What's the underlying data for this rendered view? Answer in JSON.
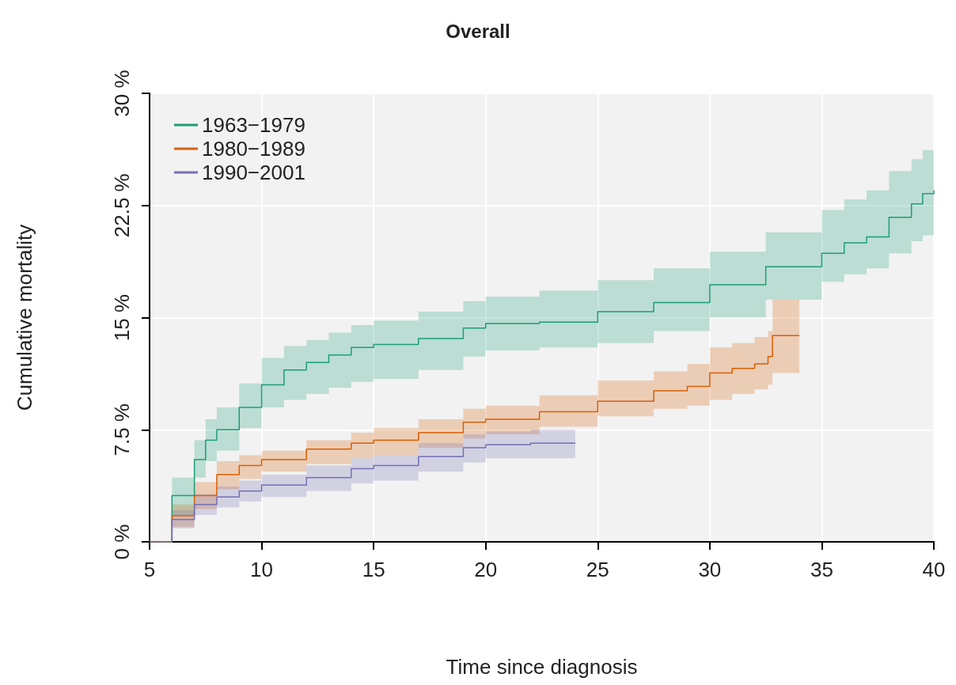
{
  "chart_data": {
    "type": "step",
    "title": "Overall",
    "xlabel": "Time since diagnosis",
    "ylabel": "Cumulative mortality",
    "xlim": [
      5,
      40
    ],
    "xticks": [
      5,
      10,
      15,
      20,
      25,
      30,
      35,
      40
    ],
    "ylim": [
      0,
      30
    ],
    "yticks": [
      {
        "value": 0,
        "label": "0 %"
      },
      {
        "value": 7.5,
        "label": "7.5 %"
      },
      {
        "value": 15,
        "label": "15 %"
      },
      {
        "value": 22.5,
        "label": "22.5 %"
      },
      {
        "value": 30,
        "label": "30 %"
      }
    ],
    "grid": true,
    "legend": "top left",
    "series": [
      {
        "name": "1963−1979",
        "color": "#1b9e77",
        "x": [
          5,
          6,
          7,
          7.5,
          8,
          9,
          10,
          11,
          12,
          13,
          14,
          15,
          17,
          19,
          20,
          22.4,
          25,
          27.5,
          30,
          32.5,
          35,
          36,
          37,
          38,
          39,
          39.5,
          40
        ],
        "values": [
          0,
          3.1,
          5.5,
          6.8,
          7.5,
          9.0,
          10.5,
          11.5,
          12.0,
          12.5,
          13.0,
          13.2,
          13.6,
          14.3,
          14.6,
          14.7,
          15.4,
          16.0,
          17.2,
          18.4,
          19.3,
          20.0,
          20.4,
          21.7,
          22.6,
          23.3,
          23.5
        ],
        "lower": [
          0,
          1.8,
          4.3,
          5.4,
          6.1,
          7.6,
          9.0,
          9.5,
          9.9,
          10.3,
          10.7,
          10.9,
          11.5,
          12.4,
          12.8,
          13.0,
          13.3,
          14.1,
          15.0,
          16.2,
          17.4,
          17.9,
          18.3,
          19.3,
          20.1,
          20.5,
          20.6
        ],
        "upper": [
          0,
          4.3,
          6.8,
          8.2,
          9.0,
          10.6,
          12.3,
          13.1,
          13.5,
          14.0,
          14.5,
          14.8,
          15.4,
          16.1,
          16.4,
          16.8,
          17.5,
          18.3,
          19.4,
          20.7,
          22.2,
          22.9,
          23.5,
          24.8,
          25.6,
          26.2,
          26.3
        ]
      },
      {
        "name": "1980−1989",
        "color": "#d95f02",
        "x": [
          5,
          6,
          7,
          8,
          9,
          10,
          12,
          14,
          15,
          17,
          19,
          20,
          22.4,
          25,
          27.5,
          29,
          30,
          31,
          32,
          32.6,
          32.8,
          34
        ],
        "values": [
          0,
          1.75,
          3.1,
          4.5,
          5.1,
          5.5,
          6.2,
          6.6,
          6.8,
          7.3,
          8.0,
          8.2,
          8.7,
          9.4,
          10.1,
          10.4,
          11.3,
          11.6,
          11.9,
          12.4,
          13.8,
          13.8
        ],
        "lower": [
          0,
          1.0,
          2.2,
          3.5,
          4.2,
          4.7,
          5.2,
          5.6,
          5.8,
          6.3,
          6.9,
          7.2,
          7.7,
          8.4,
          8.9,
          9.1,
          9.5,
          9.9,
          10.2,
          10.5,
          11.3,
          11.3
        ],
        "upper": [
          0,
          2.5,
          4.0,
          5.4,
          5.8,
          6.1,
          6.8,
          7.3,
          7.6,
          8.2,
          8.9,
          9.1,
          9.8,
          10.8,
          11.4,
          11.9,
          13.0,
          13.3,
          13.7,
          14.1,
          16.2,
          16.2
        ]
      },
      {
        "name": "1990−2001",
        "color": "#7570b3",
        "x": [
          5,
          6,
          7,
          8,
          9,
          10,
          12,
          14,
          15,
          17,
          19,
          20,
          22,
          24
        ],
        "values": [
          0,
          1.5,
          2.5,
          3.0,
          3.4,
          3.8,
          4.3,
          4.9,
          5.1,
          5.7,
          6.3,
          6.5,
          6.6,
          6.6
        ],
        "lower": [
          0,
          0.9,
          1.8,
          2.3,
          2.7,
          3.0,
          3.4,
          3.9,
          4.1,
          4.7,
          5.3,
          5.6,
          5.6,
          5.6
        ],
        "upper": [
          0,
          2.1,
          3.2,
          3.7,
          4.1,
          4.5,
          5.1,
          5.6,
          5.8,
          6.6,
          7.2,
          7.4,
          7.5,
          7.5
        ]
      }
    ]
  }
}
